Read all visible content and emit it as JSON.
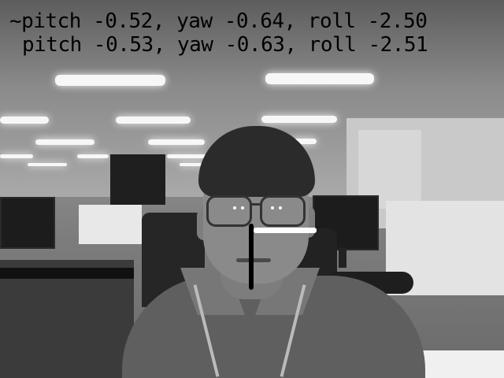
{
  "overlay": {
    "estimated_line": "~pitch -0.52, yaw -0.64, roll -2.50",
    "measured_line": "pitch -0.53, yaw -0.63, roll -2.51"
  },
  "pose_axes": {
    "vertical_axis_color": "#000000",
    "horizontal_axis_color": "#ffffff"
  },
  "image": {
    "color_mode": "grayscale",
    "scene": "office"
  }
}
